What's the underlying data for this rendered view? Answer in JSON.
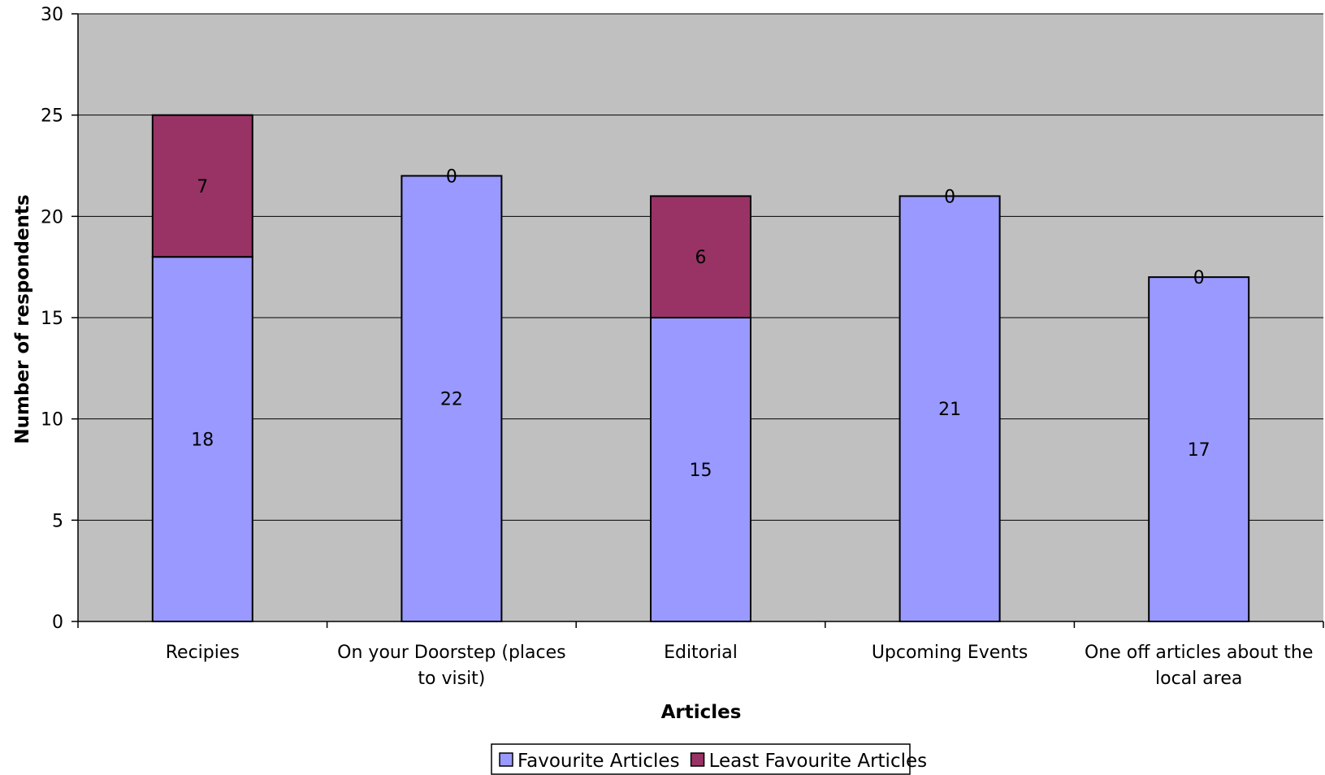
{
  "chart_data": {
    "type": "bar",
    "stacked": true,
    "title": "",
    "xlabel": "Articles",
    "ylabel": "Number of respondents",
    "ylim": [
      0,
      30
    ],
    "yticks": [
      0,
      5,
      10,
      15,
      20,
      25,
      30
    ],
    "grid": true,
    "legend_position": "bottom",
    "categories": [
      [
        "Recipies"
      ],
      [
        "On your Doorstep (places",
        "to visit)"
      ],
      [
        "Editorial"
      ],
      [
        "Upcoming Events"
      ],
      [
        "One off articles about the",
        "local area"
      ]
    ],
    "series": [
      {
        "name": "Favourite Articles",
        "values": [
          18,
          22,
          15,
          21,
          17
        ],
        "color": "#9999ff"
      },
      {
        "name": "Least Favourite Articles",
        "values": [
          7,
          0,
          6,
          0,
          0
        ],
        "color": "#993366"
      }
    ],
    "plot_background": "#c0c0c0"
  }
}
